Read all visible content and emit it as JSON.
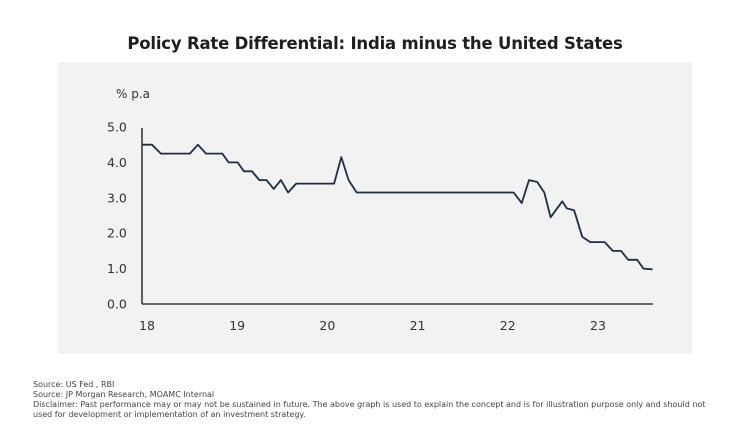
{
  "chart_data": {
    "type": "line",
    "title": "Policy Rate Differential: India minus the United States",
    "ylabel": "% p.a",
    "xlabel": "",
    "ylim": [
      0,
      5
    ],
    "xlim": [
      2018,
      2023.75
    ],
    "yticks": [
      "0.0",
      "1.0",
      "2.0",
      "3.0",
      "4.0",
      "5.0"
    ],
    "ytick_values": [
      0,
      1,
      2,
      3,
      4,
      5
    ],
    "xticks": [
      "18",
      "19",
      "20",
      "21",
      "22",
      "23"
    ],
    "xtick_values": [
      2018,
      2019,
      2020,
      2021,
      2022,
      2023
    ],
    "grid": false,
    "legend": "none",
    "line_color": "#1f2d44",
    "series": [
      {
        "name": "India minus US policy rate differential",
        "x": [
          2018.0,
          2018.11,
          2018.21,
          2018.53,
          2018.62,
          2018.71,
          2018.89,
          2018.96,
          2019.06,
          2019.13,
          2019.22,
          2019.3,
          2019.38,
          2019.46,
          2019.54,
          2019.62,
          2019.71,
          2020.13,
          2020.21,
          2020.29,
          2020.38,
          2022.12,
          2022.21,
          2022.29,
          2022.38,
          2022.46,
          2022.53,
          2022.66,
          2022.71,
          2022.79,
          2022.88,
          2022.97,
          2023.13,
          2023.22,
          2023.31,
          2023.39,
          2023.49,
          2023.56,
          2023.66
        ],
        "y": [
          4.5,
          4.5,
          4.25,
          4.25,
          4.5,
          4.25,
          4.25,
          4.0,
          4.0,
          3.75,
          3.75,
          3.5,
          3.5,
          3.25,
          3.5,
          3.15,
          3.4,
          3.4,
          4.15,
          3.5,
          3.15,
          3.15,
          2.85,
          3.5,
          3.45,
          3.15,
          2.45,
          2.9,
          2.7,
          2.65,
          1.9,
          1.75,
          1.75,
          1.5,
          1.5,
          1.25,
          1.25,
          1.0,
          0.98
        ]
      }
    ]
  },
  "footnotes": {
    "source1": "Source: US Fed , RBI",
    "source2": "Source: JP Morgan Research, MOAMC Internal",
    "disclaimer_line1": "Disclaimer: Past performance may or may not be sustained in future. The above graph is used to explain the concept and is for illustration purpose only and should not",
    "disclaimer_line2": "used for development or implementation of an investment strategy."
  },
  "colors": {
    "panel_background": "#f2f2f2",
    "line": "#1f2d44",
    "axis": "#3a3a3a",
    "text": "#333333"
  }
}
